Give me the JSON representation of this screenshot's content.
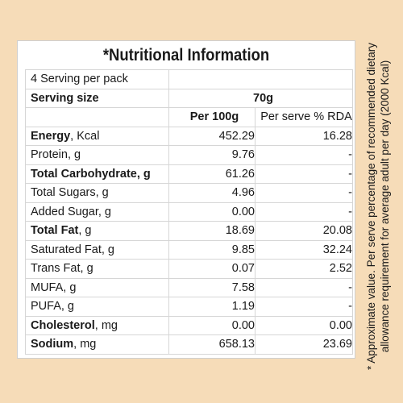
{
  "title": "*Nutritional Information",
  "serving_info": {
    "servings_per_pack": "4 Serving per pack",
    "serving_size_label": "Serving size",
    "serving_size_value": "70g"
  },
  "columns": {
    "per_100g": "Per 100g",
    "per_serve_rda": "Per serve % RDA"
  },
  "rows": [
    {
      "name": "Energy",
      "unit": ", Kcal",
      "per_100g": "452.29",
      "rda": "16.28"
    },
    {
      "name": "Protein",
      "unit": ", g",
      "per_100g": "9.76",
      "rda": "-"
    },
    {
      "name": "Total Carbohydrate",
      "unit": ", g",
      "per_100g": "61.26",
      "rda": "-"
    },
    {
      "name": "Total Sugars",
      "unit": ", g",
      "per_100g": "4.96",
      "rda": "-"
    },
    {
      "name": "Added Sugar",
      "unit": ", g",
      "per_100g": "0.00",
      "rda": "-"
    },
    {
      "name": "Total Fat",
      "unit": ", g",
      "per_100g": "18.69",
      "rda": "20.08"
    },
    {
      "name": "Saturated Fat",
      "unit": ", g",
      "per_100g": "9.85",
      "rda": "32.24"
    },
    {
      "name": "Trans Fat",
      "unit": ", g",
      "per_100g": "0.07",
      "rda": "2.52"
    },
    {
      "name": "MUFA",
      "unit": ", g",
      "per_100g": "7.58",
      "rda": "-"
    },
    {
      "name": "PUFA",
      "unit": ", g",
      "per_100g": "1.19",
      "rda": "-"
    },
    {
      "name": "Cholesterol",
      "unit": ", mg",
      "per_100g": "0.00",
      "rda": "0.00"
    },
    {
      "name": "Sodium",
      "unit": ", mg",
      "per_100g": "658.13",
      "rda": "23.69"
    }
  ],
  "footnote": {
    "line1": "* Approximate value. Per serve percentage of recommended dietary",
    "line2": "allowance requirement for average adult per day (2000 Kcal)"
  },
  "colors": {
    "background": "#f6dcb8",
    "panel": "#ffffff",
    "border": "#d6d6d6"
  }
}
